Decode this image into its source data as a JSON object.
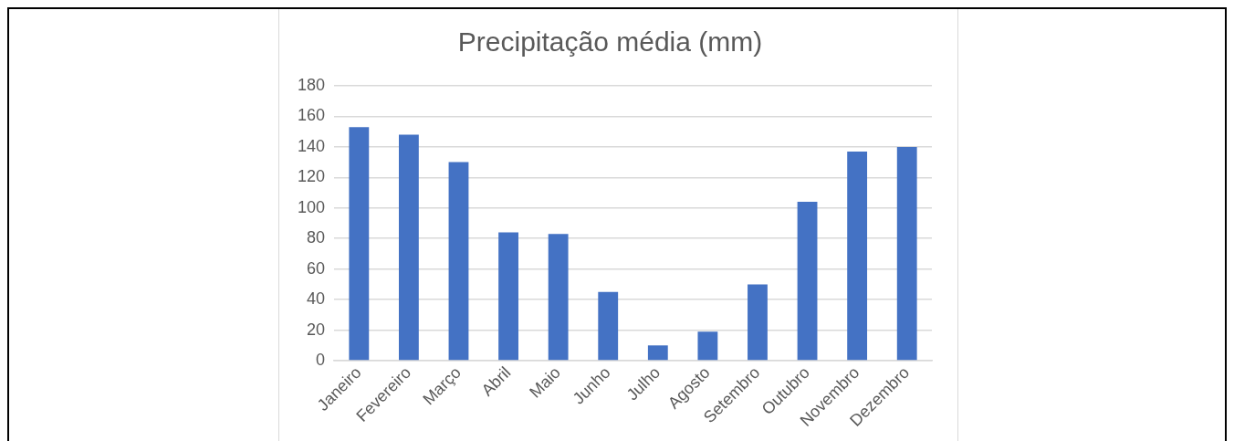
{
  "chart_data": {
    "type": "bar",
    "title": "Precipitação média (mm)",
    "categories": [
      "Janeiro",
      "Fevereiro",
      "Março",
      "Abril",
      "Maio",
      "Junho",
      "Julho",
      "Agosto",
      "Setembro",
      "Outubro",
      "Novembro",
      "Dezembro"
    ],
    "values": [
      153,
      148,
      130,
      84,
      83,
      45,
      10,
      19,
      50,
      104,
      137,
      140
    ],
    "color": "#4472c4",
    "ylim": [
      0,
      180
    ],
    "yticks": [
      0,
      20,
      40,
      60,
      80,
      100,
      120,
      140,
      160,
      180
    ],
    "grid": "y",
    "legend": false
  }
}
